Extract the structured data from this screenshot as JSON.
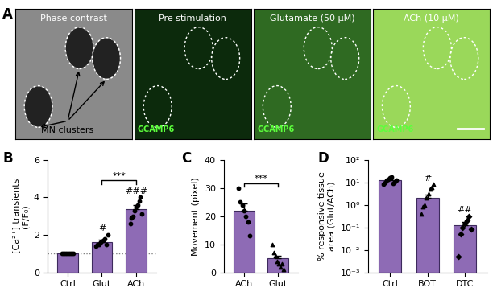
{
  "panel_A": {
    "letter": "A",
    "annotation": "MN clusters",
    "images": [
      {
        "title": "Phase contrast"
      },
      {
        "title": "Pre stimulation",
        "label": "GCAMP6"
      },
      {
        "title": "Glutamate (50 µM)",
        "label": "GCAMP6"
      },
      {
        "title": "ACh (10 µM)",
        "label": "GCAMP6"
      }
    ]
  },
  "chart_data": [
    {
      "panel": "B",
      "type": "bar",
      "categories": [
        "Ctrl",
        "Glut",
        "ACh"
      ],
      "values": [
        1.0,
        1.6,
        3.35
      ],
      "errors": [
        0.02,
        0.12,
        0.25
      ],
      "points": [
        [
          1.0,
          1.0,
          1.0,
          1.0,
          1.0,
          1.0,
          1.0,
          1.0
        ],
        [
          1.4,
          1.5,
          1.5,
          1.6,
          1.7,
          1.8,
          1.5,
          2.0
        ],
        [
          2.6,
          2.9,
          3.0,
          3.3,
          3.5,
          3.6,
          3.8,
          4.0,
          3.1
        ]
      ],
      "ylabel": "[Ca²⁺] transients\n(F/F₀)",
      "ylim": [
        0,
        6
      ],
      "yticks": [
        0,
        2,
        4,
        6
      ],
      "color": "#8e6bb5",
      "reference_line": 1,
      "annotations": [
        {
          "text": "#",
          "category": "Glut"
        },
        {
          "text": "###",
          "category": "ACh"
        }
      ],
      "brackets": [
        {
          "text": "***",
          "from": "Glut",
          "to": "ACh"
        }
      ]
    },
    {
      "panel": "C",
      "type": "bar",
      "categories": [
        "ACh",
        "Glut"
      ],
      "values": [
        22,
        5
      ],
      "errors": [
        2.5,
        1.0
      ],
      "points": [
        [
          30,
          25,
          24,
          22,
          20,
          18,
          13
        ],
        [
          10,
          7,
          6,
          4,
          3,
          2,
          3,
          1
        ]
      ],
      "ylabel": "Movement (pixel)",
      "ylim": [
        0,
        40
      ],
      "yticks": [
        0,
        10,
        20,
        30,
        40
      ],
      "color": "#8e6bb5",
      "brackets": [
        {
          "text": "***",
          "from": "ACh",
          "to": "Glut"
        }
      ]
    },
    {
      "panel": "D",
      "type": "bar",
      "categories": [
        "Ctrl",
        "BOT",
        "DTC"
      ],
      "values": [
        12,
        2.0,
        0.12
      ],
      "errors": [
        2,
        0.8,
        0.05
      ],
      "points": [
        [
          8,
          10,
          12,
          14,
          16,
          18,
          9,
          11,
          13
        ],
        [
          0.4,
          0.8,
          1,
          2,
          3,
          5,
          6,
          8
        ],
        [
          0.005,
          0.05,
          0.1,
          0.15,
          0.2,
          0.3,
          0.08
        ]
      ],
      "ylabel": "% responsive tissue\narea (Glut/ACh)",
      "log": "y",
      "ylim": [
        0.001,
        100
      ],
      "yticks": [
        {
          "value": 0.001,
          "label": "10⁻³"
        },
        {
          "value": 0.01,
          "label": "10⁻²"
        },
        {
          "value": 0.1,
          "label": "10⁻¹"
        },
        {
          "value": 1,
          "label": "10⁰"
        },
        {
          "value": 10,
          "label": "10¹"
        },
        {
          "value": 100,
          "label": "10²"
        }
      ],
      "color": "#8e6bb5",
      "annotations": [
        {
          "text": "#",
          "category": "BOT"
        },
        {
          "text": "##",
          "category": "DTC"
        }
      ]
    }
  ]
}
